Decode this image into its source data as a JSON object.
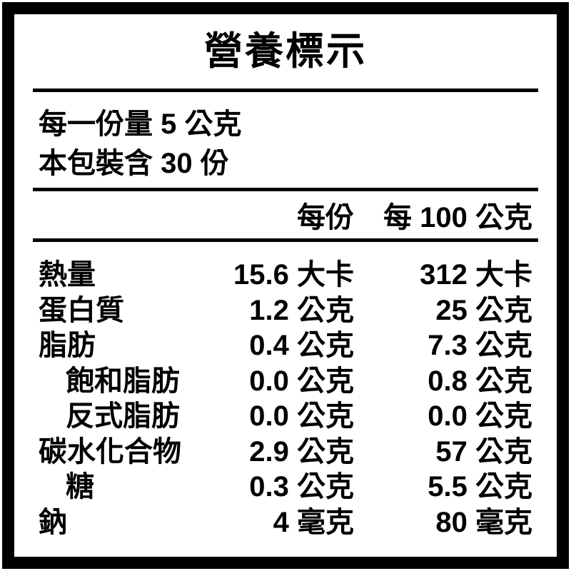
{
  "label": {
    "title": "營養標示",
    "serving_lines": [
      "每一份量 5 公克",
      "本包裝含 30 份"
    ],
    "columns": {
      "per_serving": "每份",
      "per_100g": "每 100 公克"
    },
    "rows": [
      {
        "name": "熱量",
        "indent": false,
        "per_serving": "15.6 大卡",
        "per_100g": "312 大卡"
      },
      {
        "name": "蛋白質",
        "indent": false,
        "per_serving": "1.2 公克",
        "per_100g": "25 公克"
      },
      {
        "name": "脂肪",
        "indent": false,
        "per_serving": "0.4 公克",
        "per_100g": "7.3 公克"
      },
      {
        "name": "飽和脂肪",
        "indent": true,
        "per_serving": "0.0 公克",
        "per_100g": "0.8 公克"
      },
      {
        "name": "反式脂肪",
        "indent": true,
        "per_serving": "0.0 公克",
        "per_100g": "0.0 公克"
      },
      {
        "name": "碳水化合物",
        "indent": false,
        "per_serving": "2.9 公克",
        "per_100g": "57 公克"
      },
      {
        "name": "糖",
        "indent": true,
        "per_serving": "0.3 公克",
        "per_100g": "5.5 公克"
      },
      {
        "name": "鈉",
        "indent": false,
        "per_serving": "4 毫克",
        "per_100g": "80 毫克"
      }
    ],
    "colors": {
      "border": "#000000",
      "background": "#ffffff",
      "text": "#000000"
    }
  }
}
